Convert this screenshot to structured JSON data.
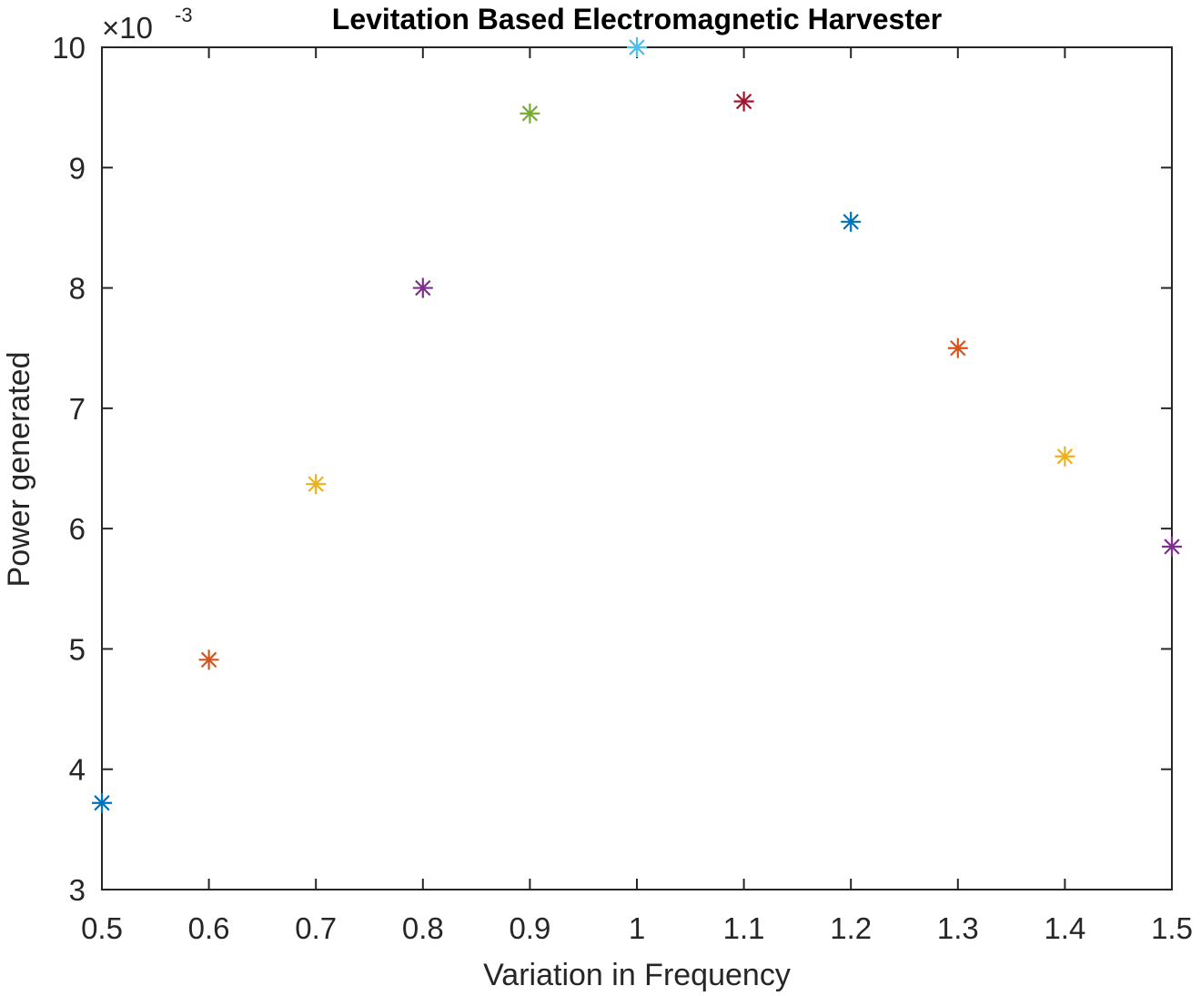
{
  "chart_data": {
    "type": "scatter",
    "title": "Levitation Based Electromagnetic Harvester",
    "xlabel": "Variation in Frequency",
    "ylabel": "Power generated",
    "exponent_multiplier": "×10",
    "exponent_power": "-3",
    "xlim": [
      0.5,
      1.5
    ],
    "ylim": [
      3,
      10
    ],
    "xticks": [
      "0.5",
      "0.6",
      "0.7",
      "0.8",
      "0.9",
      "1",
      "1.1",
      "1.2",
      "1.3",
      "1.4",
      "1.5"
    ],
    "yticks": [
      "3",
      "4",
      "5",
      "6",
      "7",
      "8",
      "9",
      "10"
    ],
    "marker": "asterisk",
    "grid": false,
    "box": true,
    "points": [
      {
        "x": 0.5,
        "y": 3.72,
        "color": "#0072BD"
      },
      {
        "x": 0.6,
        "y": 4.91,
        "color": "#D95319"
      },
      {
        "x": 0.7,
        "y": 6.37,
        "color": "#EDB120"
      },
      {
        "x": 0.8,
        "y": 8.0,
        "color": "#7E2F8E"
      },
      {
        "x": 0.9,
        "y": 9.45,
        "color": "#77AC30"
      },
      {
        "x": 1.0,
        "y": 10.0,
        "color": "#4DBEEE"
      },
      {
        "x": 1.1,
        "y": 9.55,
        "color": "#A2142F"
      },
      {
        "x": 1.2,
        "y": 8.55,
        "color": "#0072BD"
      },
      {
        "x": 1.3,
        "y": 7.5,
        "color": "#D95319"
      },
      {
        "x": 1.4,
        "y": 6.6,
        "color": "#EDB120"
      },
      {
        "x": 1.5,
        "y": 5.85,
        "color": "#7E2F8E"
      }
    ]
  }
}
